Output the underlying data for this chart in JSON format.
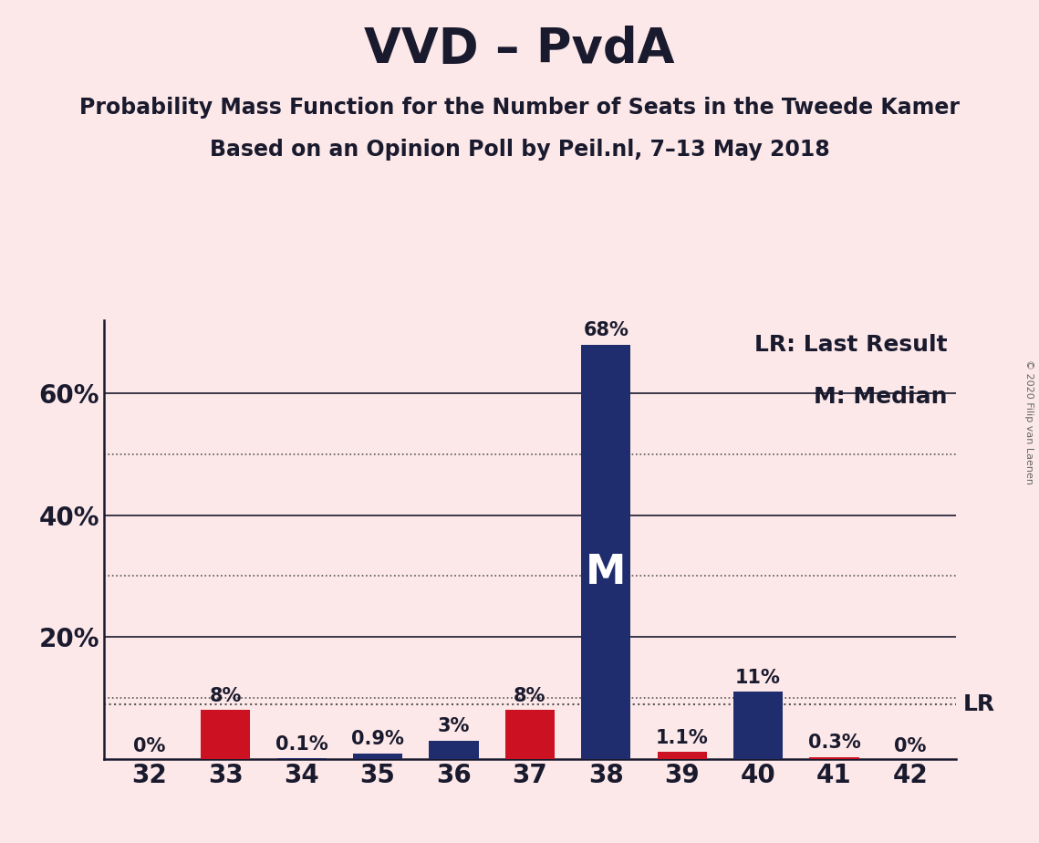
{
  "title": "VVD – PvdA",
  "subtitle1": "Probability Mass Function for the Number of Seats in the Tweede Kamer",
  "subtitle2": "Based on an Opinion Poll by Peil.nl, 7–13 May 2018",
  "copyright": "© 2020 Filip van Laenen",
  "categories": [
    32,
    33,
    34,
    35,
    36,
    37,
    38,
    39,
    40,
    41,
    42
  ],
  "vvd_values": [
    0.0,
    0.0,
    0.1,
    0.9,
    3.0,
    0.0,
    68.0,
    0.0,
    11.0,
    0.0,
    0.0
  ],
  "pvda_values": [
    0.0,
    8.0,
    0.0,
    0.0,
    0.0,
    8.0,
    0.0,
    1.1,
    0.0,
    0.3,
    0.0
  ],
  "vvd_color": "#1f2d6e",
  "pvda_color": "#cc1122",
  "background_color": "#fce8e8",
  "median_bar": 38,
  "lr_line_value": 9.0,
  "lr_label": "LR",
  "median_label": "M",
  "legend_text1": "LR: Last Result",
  "legend_text2": "M: Median",
  "ylim": [
    0,
    72
  ],
  "ytick_positions": [
    20,
    40,
    60
  ],
  "ytick_labels": [
    "20%",
    "40%",
    "60%"
  ],
  "solid_gridlines": [
    20,
    40,
    60
  ],
  "dotted_gridlines": [
    10,
    30,
    50
  ],
  "bar_width": 0.65,
  "label_fontsize": 15,
  "tick_fontsize": 20,
  "title_fontsize": 38,
  "subtitle_fontsize": 17,
  "legend_fontsize": 18,
  "copyright_fontsize": 8
}
